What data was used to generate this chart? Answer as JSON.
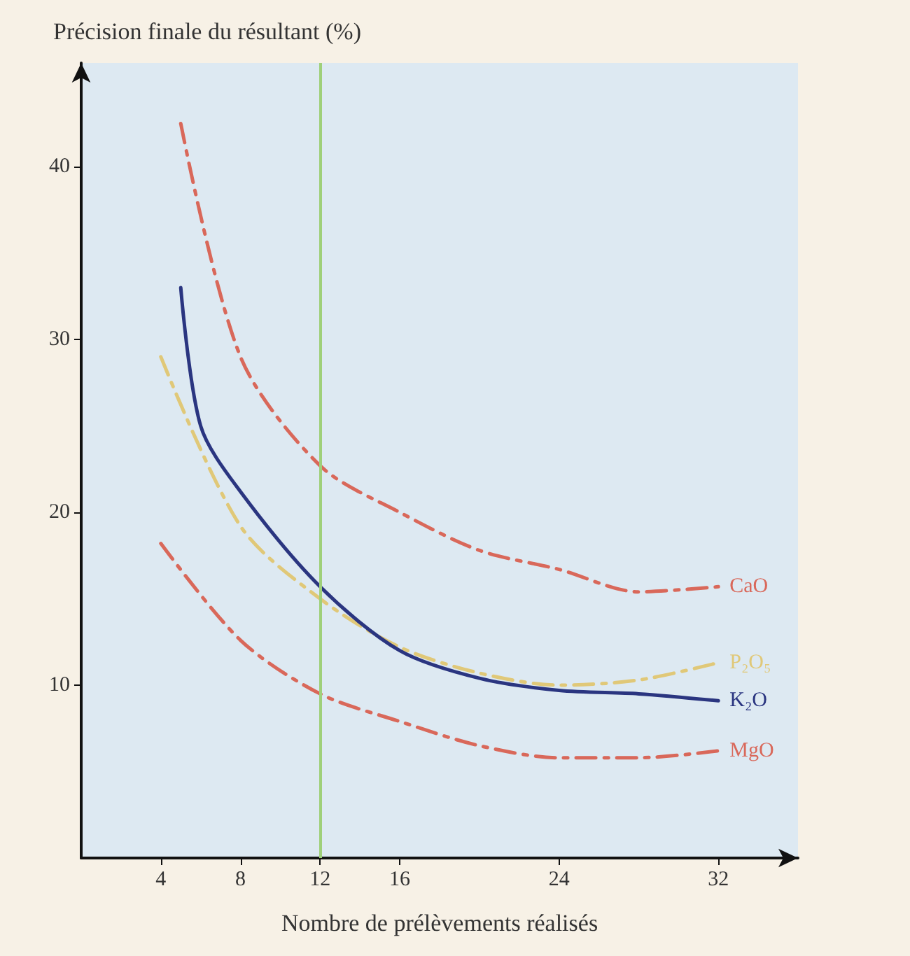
{
  "chart_data": {
    "type": "line",
    "ylabel": "Précision finale du résultant (%)",
    "xlabel": "Nombre de prélèvements réalisés",
    "xlim": [
      0,
      36
    ],
    "xticks": [
      4,
      8,
      12,
      16,
      24,
      32
    ],
    "ylim": [
      0,
      46
    ],
    "yticks": [
      10,
      20,
      30,
      40
    ],
    "grid": false,
    "legend": false,
    "marker": "none",
    "series": [
      {
        "name": "CaO",
        "color": "#d9685a",
        "line_style": "dashed",
        "x": [
          5,
          8,
          12,
          16,
          20,
          24,
          28,
          32
        ],
        "values": [
          42.5,
          29,
          22.7,
          20,
          17.8,
          16.7,
          15.4,
          15.7
        ]
      },
      {
        "name": "P₂O₅",
        "color": "#e0c878",
        "line_style": "dashed",
        "x": [
          4,
          8,
          12,
          16,
          20,
          24,
          28,
          32
        ],
        "values": [
          29,
          19.2,
          15,
          12.2,
          10.7,
          10,
          10.3,
          11.3
        ]
      },
      {
        "name": "K₂O",
        "color": "#2a3580",
        "line_style": "solid",
        "x": [
          5,
          6,
          8,
          12,
          16,
          20,
          24,
          28,
          32
        ],
        "values": [
          33,
          25,
          21.2,
          15.7,
          12,
          10.4,
          9.7,
          9.5,
          9.1
        ]
      },
      {
        "name": "MgO",
        "color": "#d9685a",
        "line_style": "dashed",
        "x": [
          4,
          8,
          12,
          16,
          20,
          24,
          28,
          32
        ],
        "values": [
          18.2,
          12.6,
          9.5,
          7.9,
          6.5,
          5.8,
          5.8,
          6.2
        ]
      }
    ],
    "ref_lines": [
      {
        "axis": "x",
        "value": 12,
        "color": "#9fd07a",
        "line_style": "solid"
      }
    ]
  }
}
